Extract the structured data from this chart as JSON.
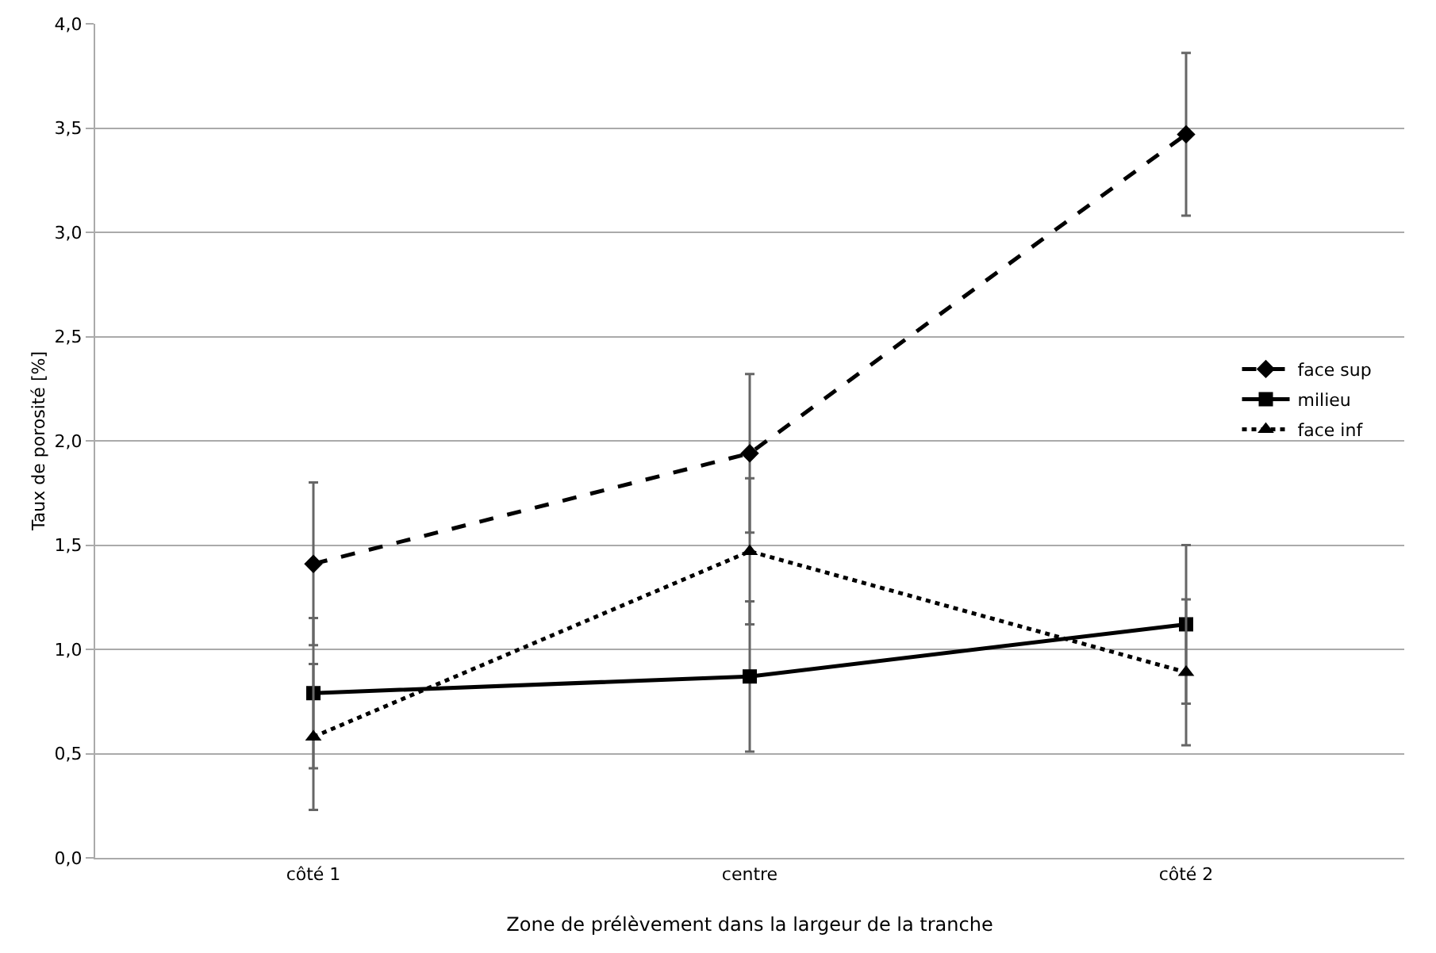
{
  "chart_data": {
    "type": "line",
    "xlabel": "Zone de prélèvement dans la largeur de la tranche",
    "ylabel": "Taux de porosité [%]",
    "categories": [
      "côté 1",
      "centre",
      "côté 2"
    ],
    "series": [
      {
        "name": "face sup",
        "color": "#000000",
        "values": [
          1.41,
          1.94,
          3.47
        ],
        "errors": [
          0.39,
          0.38,
          0.39
        ],
        "marker": "diamond",
        "line_style": "dashed"
      },
      {
        "name": "milieu",
        "color": "#000000",
        "values": [
          0.79,
          0.87,
          1.12
        ],
        "errors": [
          0.36,
          0.36,
          0.38
        ],
        "marker": "square",
        "line_style": "solid"
      },
      {
        "name": "face inf",
        "color": "#000000",
        "values": [
          0.58,
          1.47,
          0.89
        ],
        "errors": [
          0.35,
          0.35,
          0.35
        ],
        "marker": "triangle",
        "line_style": "dotted"
      }
    ],
    "ylim": [
      0,
      4
    ],
    "yticks": [
      {
        "value": 0,
        "label": "0,0"
      },
      {
        "value": 0.5,
        "label": "0,5"
      },
      {
        "value": 1,
        "label": "1,0"
      },
      {
        "value": 1.5,
        "label": "1,5"
      },
      {
        "value": 2,
        "label": "2,0"
      },
      {
        "value": 2.5,
        "label": "2,5"
      },
      {
        "value": 3,
        "label": "3,0"
      },
      {
        "value": 3.5,
        "label": "3,5"
      },
      {
        "value": 4,
        "label": "4,0"
      }
    ],
    "grid": "y",
    "legend": "right"
  }
}
